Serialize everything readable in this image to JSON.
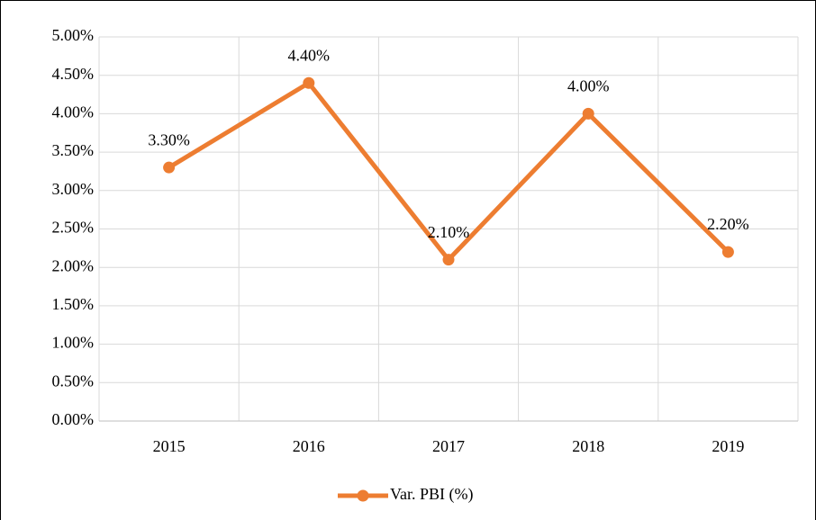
{
  "chart_data": {
    "type": "line",
    "categories": [
      "2015",
      "2016",
      "2017",
      "2018",
      "2019"
    ],
    "series": [
      {
        "name": "Var. PBI (%)",
        "color": "#ed7d31",
        "values": [
          3.3,
          4.4,
          2.1,
          4.0,
          2.2
        ],
        "value_labels": [
          "3.30%",
          "4.40%",
          "2.10%",
          "4.00%",
          "2.20%"
        ]
      }
    ],
    "ylim": [
      0,
      5
    ],
    "yticks": [
      {
        "value": 0,
        "label": "0.00%"
      },
      {
        "value": 0.5,
        "label": "0.50%"
      },
      {
        "value": 1,
        "label": "1.00%"
      },
      {
        "value": 1.5,
        "label": "1.50%"
      },
      {
        "value": 2,
        "label": "2.00%"
      },
      {
        "value": 2.5,
        "label": "2.50%"
      },
      {
        "value": 3,
        "label": "3.00%"
      },
      {
        "value": 3.5,
        "label": "3.50%"
      },
      {
        "value": 4,
        "label": "4.00%"
      },
      {
        "value": 4.5,
        "label": "4.50%"
      },
      {
        "value": 5,
        "label": "5.00%"
      }
    ],
    "grid": true,
    "legend": "bottom"
  }
}
